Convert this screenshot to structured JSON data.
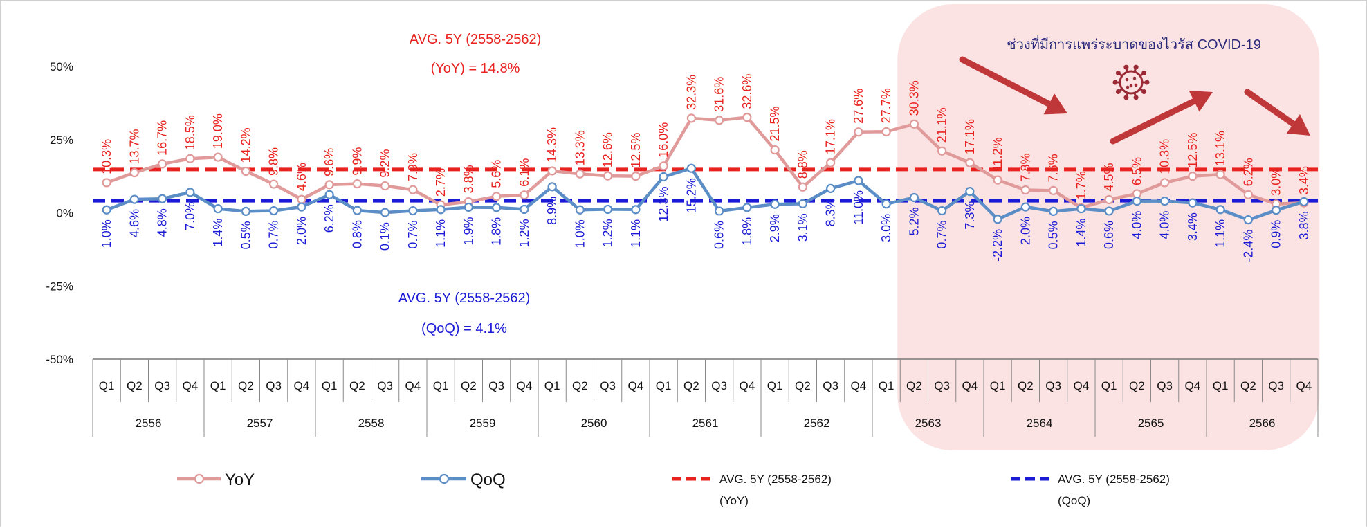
{
  "chart_data": {
    "type": "line",
    "ylim": [
      -50,
      50
    ],
    "yticks": [
      "50%",
      "25%",
      "0%",
      "-25%",
      "-50%"
    ],
    "quarters": [
      "Q1",
      "Q2",
      "Q3",
      "Q4",
      "Q1",
      "Q2",
      "Q3",
      "Q4",
      "Q1",
      "Q2",
      "Q3",
      "Q4",
      "Q1",
      "Q2",
      "Q3",
      "Q4",
      "Q1",
      "Q2",
      "Q3",
      "Q4",
      "Q1",
      "Q2",
      "Q3",
      "Q4",
      "Q1",
      "Q2",
      "Q3",
      "Q4",
      "Q1",
      "Q2",
      "Q3",
      "Q4",
      "Q1",
      "Q2",
      "Q3",
      "Q4",
      "Q1",
      "Q2",
      "Q3",
      "Q4",
      "Q1",
      "Q2",
      "Q3",
      "Q4"
    ],
    "years": [
      "2556",
      "2557",
      "2558",
      "2559",
      "2560",
      "2561",
      "2562",
      "2563",
      "2564",
      "2565",
      "2566"
    ],
    "series": [
      {
        "name": "YoY",
        "color": "#e09a9a",
        "values": [
          10.3,
          13.7,
          16.7,
          18.5,
          19.0,
          14.2,
          9.8,
          4.6,
          9.6,
          9.9,
          9.2,
          7.9,
          2.7,
          3.8,
          5.6,
          6.1,
          14.3,
          13.3,
          12.6,
          12.5,
          16.0,
          32.3,
          31.6,
          32.6,
          21.5,
          8.8,
          17.1,
          27.6,
          27.7,
          30.3,
          21.1,
          17.1,
          11.2,
          7.8,
          7.6,
          1.7,
          4.5,
          6.5,
          10.3,
          12.5,
          13.1,
          6.2,
          3.0,
          3.4
        ],
        "labels": [
          "10.3%",
          "13.7%",
          "16.7%",
          "18.5%",
          "19.0%",
          "14.2%",
          "9.8%",
          "4.6%",
          "9.6%",
          "9.9%",
          "9.2%",
          "7.9%",
          "2.7%",
          "3.8%",
          "5.6%",
          "6.1%",
          "14.3%",
          "13.3%",
          "12.6%",
          "12.5%",
          "16.0%",
          "32.3%",
          "31.6%",
          "32.6%",
          "21.5%",
          "8.8%",
          "17.1%",
          "27.6%",
          "27.7%",
          "30.3%",
          "21.1%",
          "17.1%",
          "11.2%",
          "7.8%",
          "7.6%",
          "1.7%",
          "4.5%",
          "6.5%",
          "10.3%",
          "12.5%",
          "13.1%",
          "6.2%",
          "3.0%",
          "3.4%"
        ]
      },
      {
        "name": "QoQ",
        "color": "#5b8dc6",
        "values": [
          1.0,
          4.6,
          4.8,
          7.0,
          1.4,
          0.5,
          0.7,
          2.0,
          6.2,
          0.8,
          0.1,
          0.7,
          1.1,
          1.9,
          1.8,
          1.2,
          8.9,
          1.0,
          1.2,
          1.1,
          12.3,
          15.2,
          0.6,
          1.8,
          2.9,
          3.1,
          8.3,
          11.0,
          3.0,
          5.2,
          0.7,
          7.3,
          -2.2,
          2.0,
          0.5,
          1.4,
          0.6,
          4.0,
          4.0,
          3.4,
          1.1,
          -2.4,
          0.9,
          3.8
        ],
        "labels": [
          "1.0%",
          "4.6%",
          "4.8%",
          "7.0%",
          "1.4%",
          "0.5%",
          "0.7%",
          "2.0%",
          "6.2%",
          "0.8%",
          "0.1%",
          "0.7%",
          "1.1%",
          "1.9%",
          "1.8%",
          "1.2%",
          "8.9%",
          "1.0%",
          "1.2%",
          "1.1%",
          "12.3%",
          "15.2%",
          "0.6%",
          "1.8%",
          "2.9%",
          "3.1%",
          "8.3%",
          "11.0%",
          "3.0%",
          "5.2%",
          "0.7%",
          "7.3%",
          "-2.2%",
          "2.0%",
          "0.5%",
          "1.4%",
          "0.6%",
          "4.0%",
          "4.0%",
          "3.4%",
          "1.1%",
          "-2.4%",
          "0.9%",
          "3.8%"
        ]
      }
    ],
    "averages": {
      "yoy": {
        "value": 14.8,
        "color": "#e8231f",
        "line1": "AVG. 5Y (2558-2562)",
        "line2": "(YoY) = 14.8%"
      },
      "qoq": {
        "value": 4.1,
        "color": "#1b1bd6",
        "line1": "AVG. 5Y (2558-2562)",
        "line2": "(QoQ) = 4.1%"
      }
    },
    "highlight": {
      "label": "ช่วงที่มีการแพร่ระบาดของไวรัส COVID-19",
      "from_index": 29,
      "to_index": 43,
      "color": "#fbe3e3"
    },
    "legend": {
      "position": "bottom",
      "items": [
        {
          "label": "YoY"
        },
        {
          "label": "QoQ"
        },
        {
          "label": "AVG. 5Y (2558-2562)",
          "sub": "(YoY)"
        },
        {
          "label": "AVG. 5Y (2558-2562)",
          "sub": "(QoQ)"
        }
      ]
    },
    "grid": false
  }
}
